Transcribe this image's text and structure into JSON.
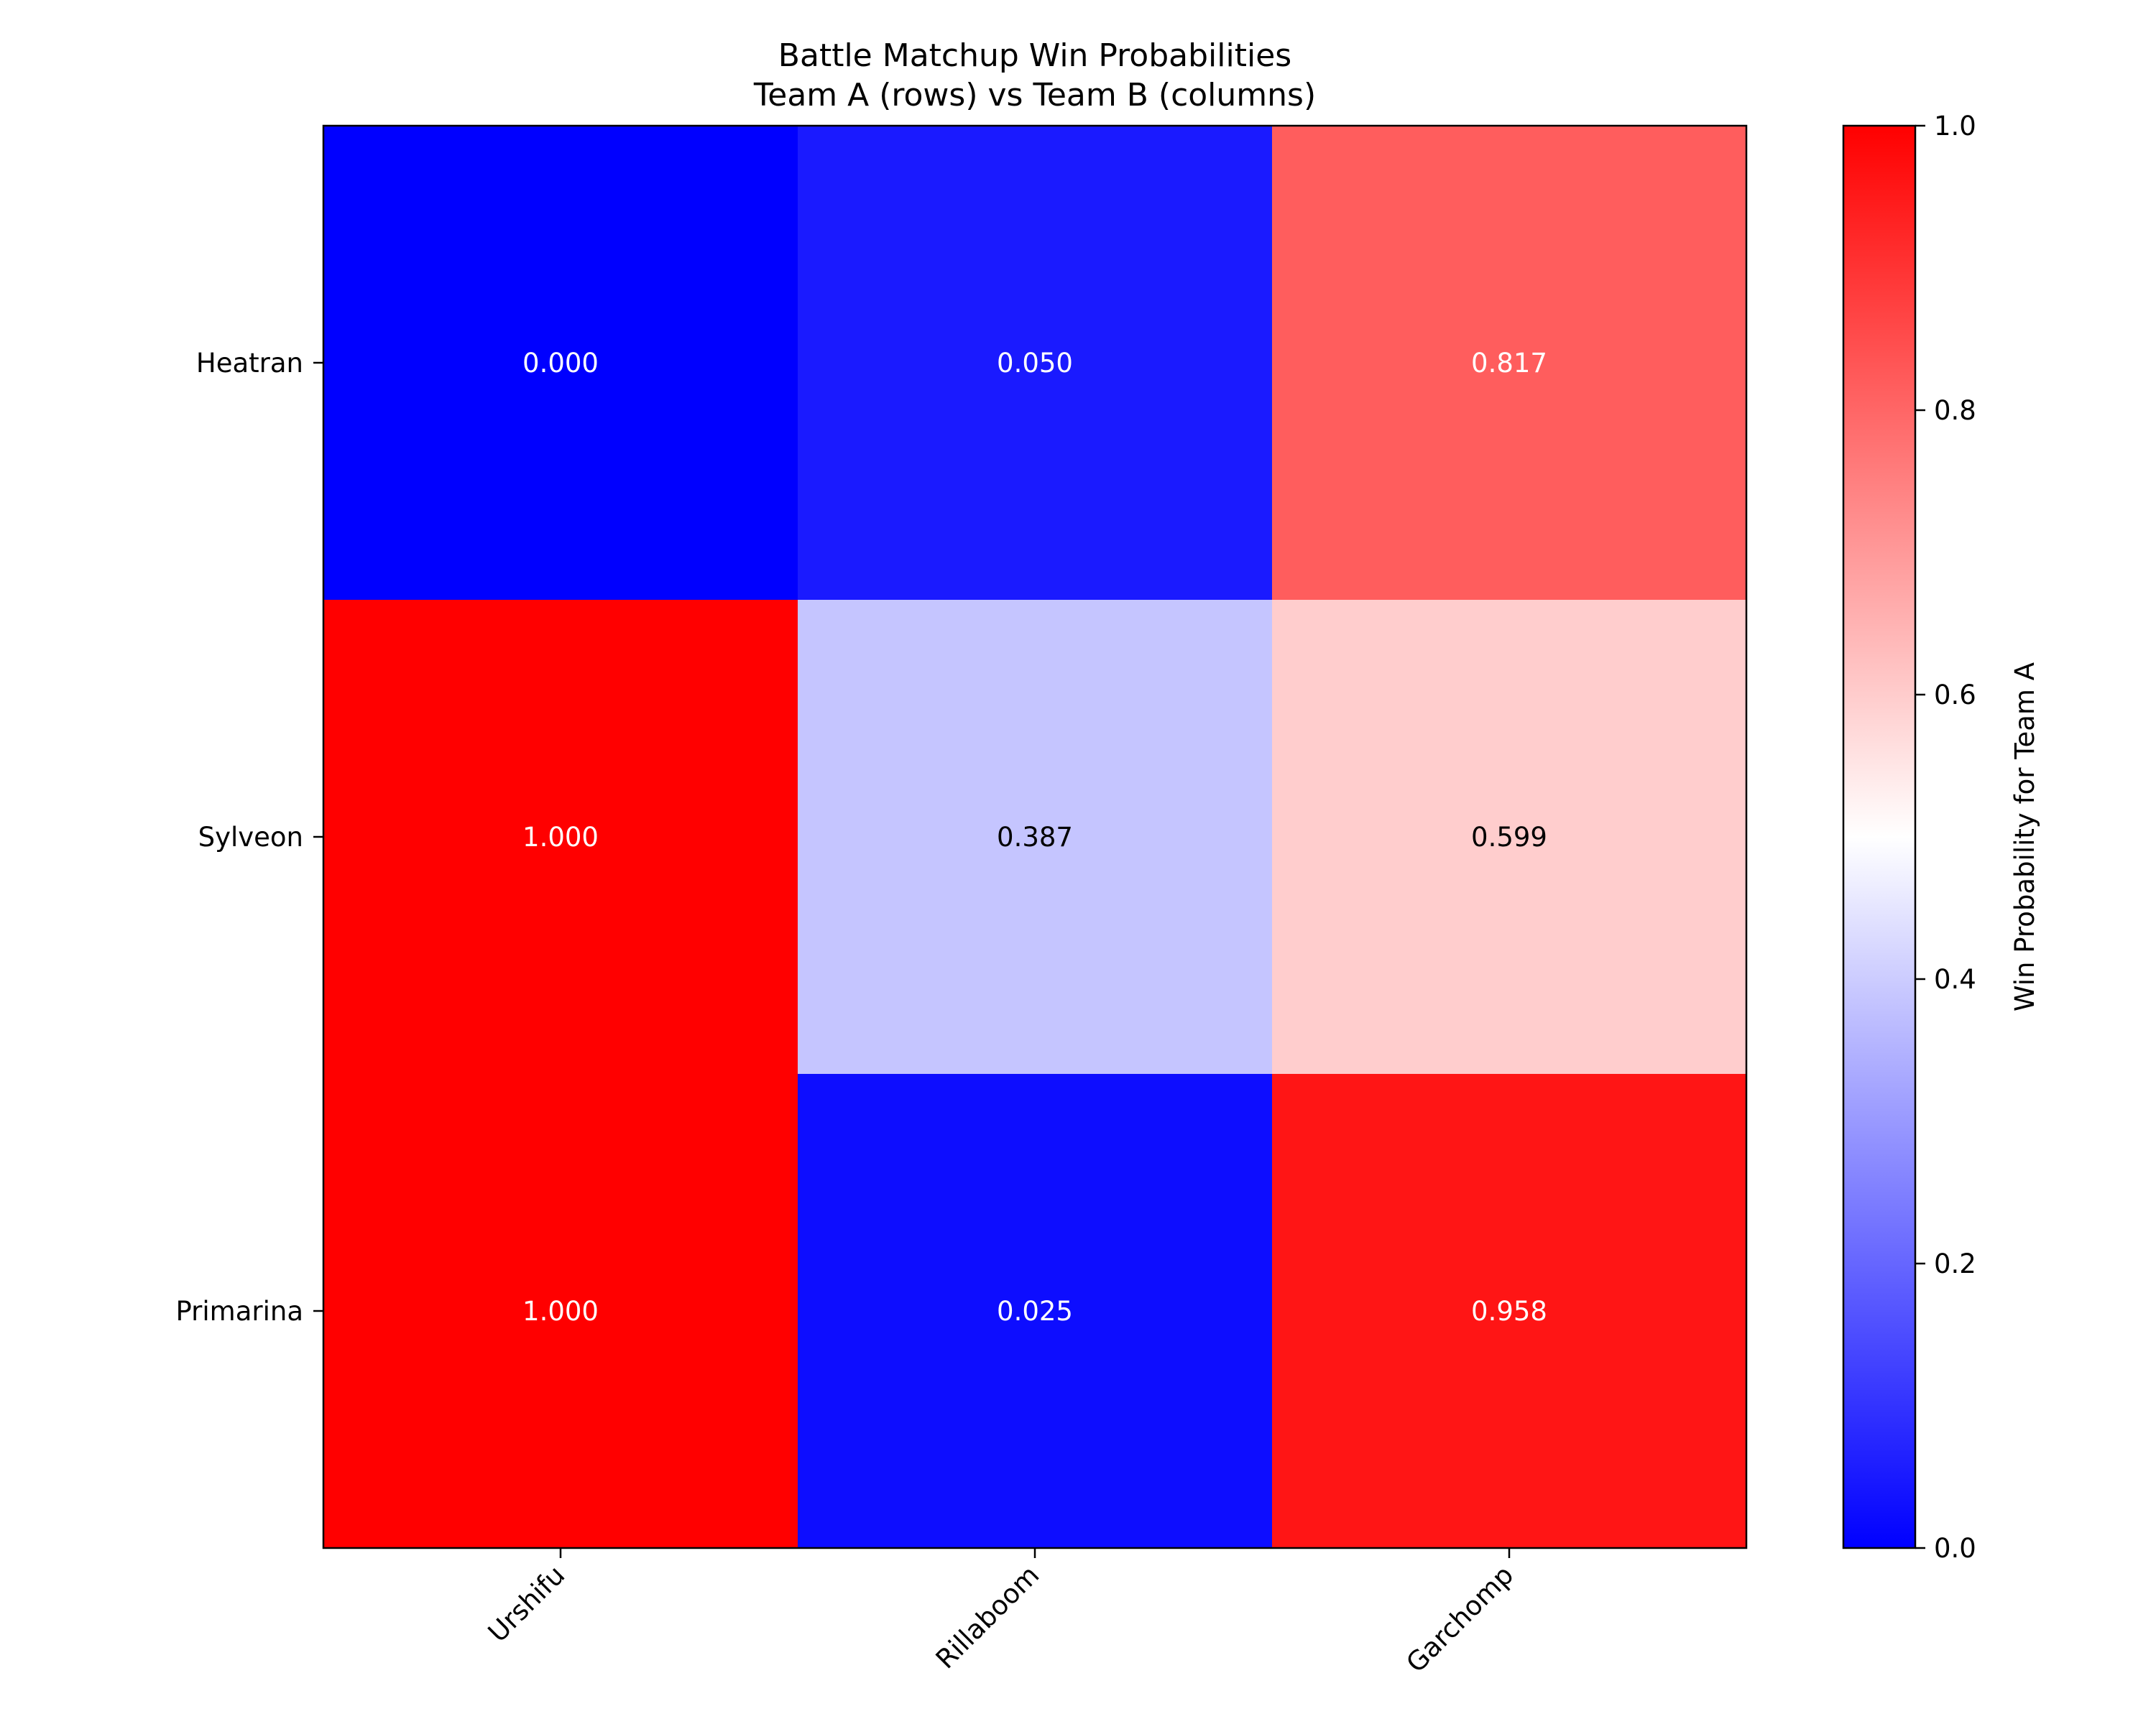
{
  "chart_data": {
    "type": "heatmap",
    "title": "Battle Matchup Win Probabilities",
    "subtitle": "Team A (rows) vs Team B (columns)",
    "rows": [
      "Heatran",
      "Sylveon",
      "Primarina"
    ],
    "columns": [
      "Urshifu",
      "Rillaboom",
      "Garchomp"
    ],
    "values": [
      [
        0.0,
        0.05,
        0.817
      ],
      [
        1.0,
        0.387,
        0.599
      ],
      [
        1.0,
        0.025,
        0.958
      ]
    ],
    "cell_labels": [
      [
        "0.000",
        "0.050",
        "0.817"
      ],
      [
        "1.000",
        "0.387",
        "0.599"
      ],
      [
        "1.000",
        "0.025",
        "0.958"
      ]
    ],
    "colormap": "bwr",
    "colormap_colors": [
      "#0000ff",
      "#ffffff",
      "#ff0000"
    ],
    "vmin": 0.0,
    "vmax": 1.0,
    "colorbar": {
      "label": "Win Probability for Team A",
      "ticks": [
        0.0,
        0.2,
        0.4,
        0.6,
        0.8,
        1.0
      ],
      "tick_labels": [
        "0.0",
        "0.2",
        "0.4",
        "0.6",
        "0.8",
        "1.0"
      ],
      "placement": "right"
    },
    "grid": false
  }
}
